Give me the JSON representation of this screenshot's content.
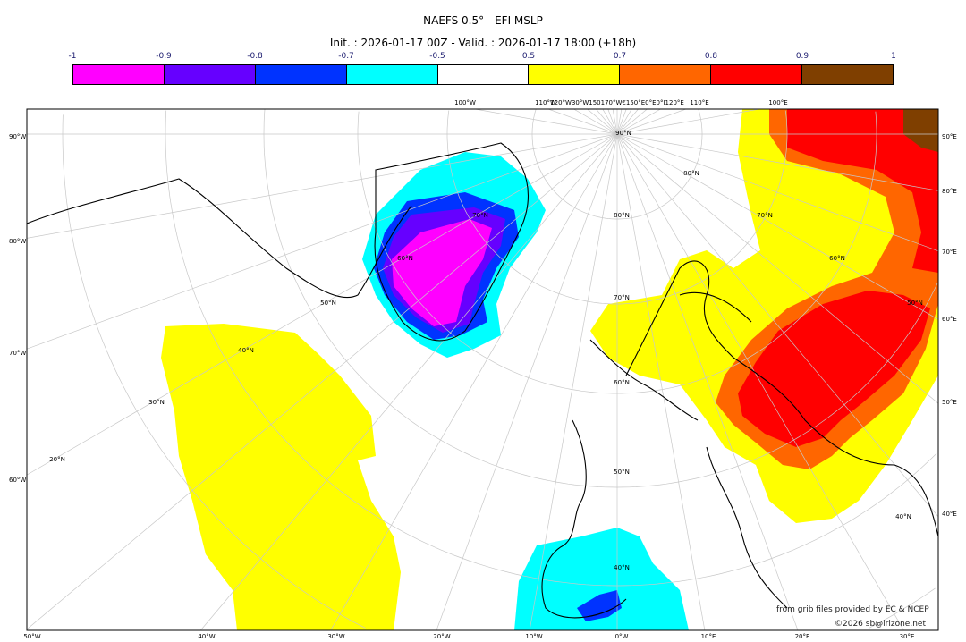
{
  "title": "NAEFS 0.5° - EFI MSLP",
  "subtitle": "Init. : 2026-01-17 00Z - Valid. : 2026-01-17 18:00 (+18h)",
  "colorbar": {
    "ticks": [
      "-1",
      "-0.9",
      "-0.8",
      "-0.7",
      "-0.5",
      "0.5",
      "0.7",
      "0.8",
      "0.9",
      "1"
    ],
    "colors": [
      "#ff00ff",
      "#6600ff",
      "#0033ff",
      "#00ffff",
      "#ffffff",
      "#ffff00",
      "#ff6600",
      "#ff0000",
      "#7f3f00"
    ]
  },
  "graticule": {
    "top": [
      "100°W",
      "110°W",
      "120°W30°W150170°W€150°E0°E0°I120°E",
      "110°E",
      "100°E"
    ],
    "left": [
      "90°W",
      "80°W",
      "70°W",
      "60°W"
    ],
    "right": [
      "90°E",
      "80°E",
      "70°E",
      "60°E",
      "50°E",
      "40°E"
    ],
    "bottom": [
      "50°W",
      "40°W",
      "30°W",
      "20°W",
      "10°W",
      "0°W",
      "10°E",
      "20°E",
      "30°E"
    ],
    "lat_labels": [
      "90°N",
      "80°N",
      "80°N",
      "70°N",
      "70°N",
      "70°N",
      "60°N",
      "60°N",
      "60°N",
      "50°N",
      "50°N",
      "50°N",
      "40°N",
      "40°N",
      "40°N",
      "30°N",
      "20°N"
    ]
  },
  "credits": {
    "source": "from grib files provided by EC & NCEP",
    "copyright": "©2026 sb@irizone.net"
  }
}
